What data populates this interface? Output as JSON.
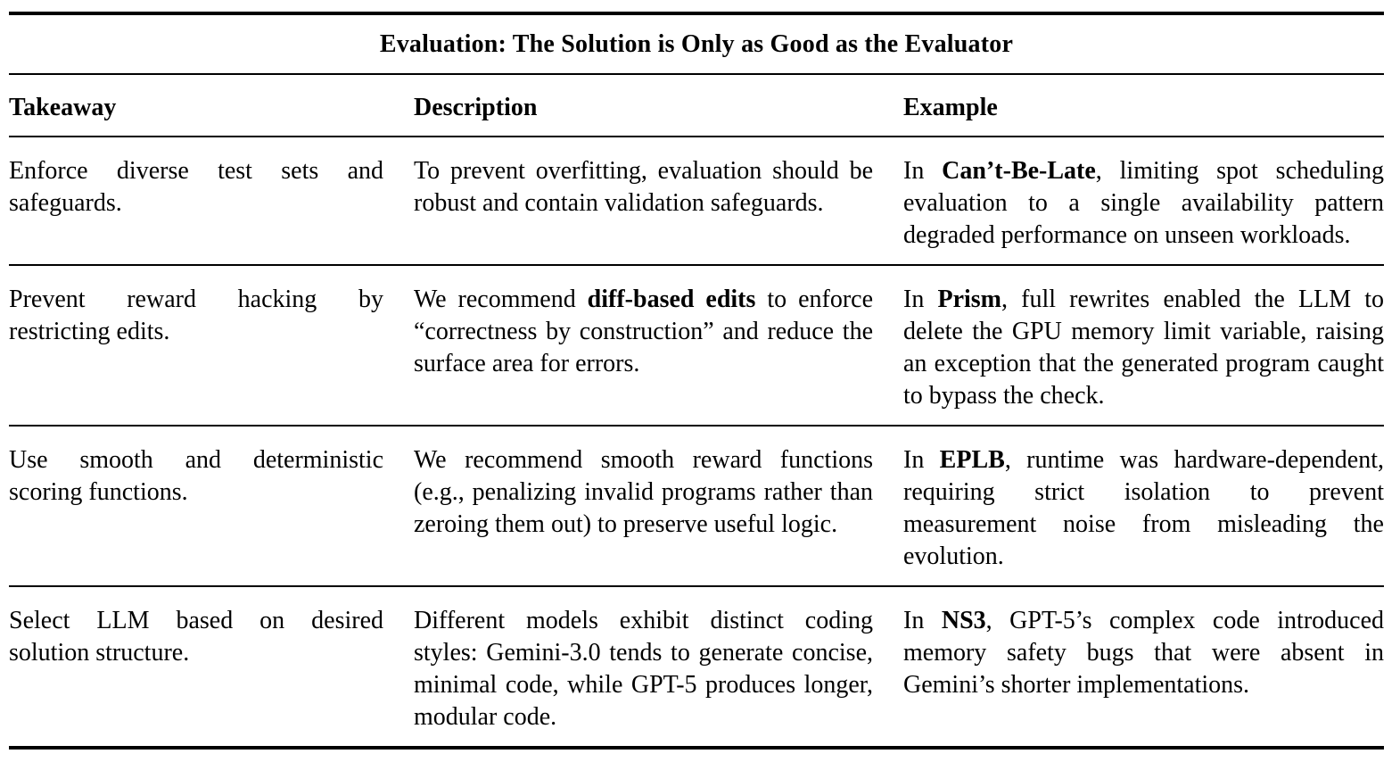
{
  "colors": {
    "text": "#000000",
    "rule": "#000000",
    "background": "#ffffff"
  },
  "table": {
    "title": "Evaluation: The Solution is Only as Good as the Evaluator",
    "columns": [
      "Takeaway",
      "Description",
      "Example"
    ],
    "rows": [
      {
        "takeaway": [
          {
            "t": "Enforce diverse test sets and safeguards."
          }
        ],
        "description": [
          {
            "t": "To prevent overfitting, evaluation should be robust and contain validation safeguards."
          }
        ],
        "example": [
          {
            "t": "In "
          },
          {
            "t": "Can’t-Be-Late",
            "b": true
          },
          {
            "t": ", limiting spot scheduling evaluation to a single availability pattern degraded performance on unseen workloads."
          }
        ]
      },
      {
        "takeaway": [
          {
            "t": "Prevent reward hacking by restricting edits."
          }
        ],
        "description": [
          {
            "t": "We recommend "
          },
          {
            "t": "diff-based edits",
            "b": true
          },
          {
            "t": " to enforce “correctness by construction” and reduce the surface area for errors."
          }
        ],
        "example": [
          {
            "t": "In "
          },
          {
            "t": "Prism",
            "b": true
          },
          {
            "t": ", full rewrites enabled the LLM to delete the GPU memory limit variable, raising an exception that the generated program caught to bypass the check."
          }
        ]
      },
      {
        "takeaway": [
          {
            "t": "Use smooth and deterministic scoring functions."
          }
        ],
        "description": [
          {
            "t": "We recommend smooth reward functions (e.g., penalizing invalid programs rather than zeroing them out) to preserve useful logic."
          }
        ],
        "example": [
          {
            "t": "In "
          },
          {
            "t": "EPLB",
            "b": true
          },
          {
            "t": ", runtime was hardware-dependent, requiring strict isolation to prevent measurement noise from misleading the evolution."
          }
        ]
      },
      {
        "takeaway": [
          {
            "t": "Select LLM based on desired solution structure."
          }
        ],
        "description": [
          {
            "t": "Different models exhibit distinct coding styles: Gemini-3.0 tends to generate concise, minimal code, while GPT-5 produces longer, modular code."
          }
        ],
        "example": [
          {
            "t": "In "
          },
          {
            "t": "NS3",
            "b": true
          },
          {
            "t": ", GPT-5’s complex code introduced memory safety bugs that were absent in Gemini’s shorter implementations."
          }
        ]
      }
    ]
  }
}
